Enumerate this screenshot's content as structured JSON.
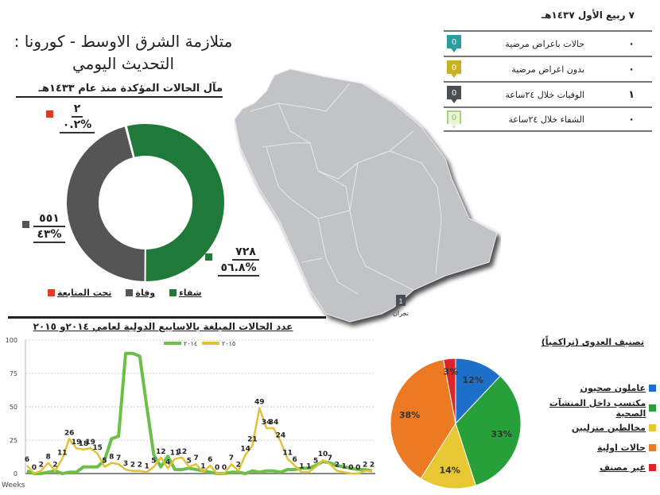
{
  "header": {
    "title_line1": "متلازمة الشرق الاوسط - كورونا :",
    "title_line2": "التحديث اليومي"
  },
  "donut": {
    "heading": "مآل الحالات المؤكدة منذ عام ١٤٣٣هـ",
    "labels": {
      "followup": {
        "num": "٢",
        "pct": "%٠.٢"
      },
      "death": {
        "num": "٥٥١",
        "pct": "%٤٣"
      },
      "recovery": {
        "num": "٧٢٨",
        "pct": "%٥٦.٨"
      }
    },
    "legend": {
      "recovery": "شفاء",
      "death": "وفاة",
      "followup": "تحت المتابعة"
    }
  },
  "daily": {
    "date": "٧ ربيع الأول ١٤٣٧هـ",
    "rows": [
      {
        "icon": "0",
        "label": "حالات باعراض مرضية",
        "value": "٠"
      },
      {
        "icon": "0",
        "label": "بدون اعراض مرضية",
        "value": "٠"
      },
      {
        "icon": "0",
        "label": "الوفيات خلال ٢٤ساعة",
        "value": "١"
      },
      {
        "icon": "0",
        "label": "الشفاء خلال ٢٤ساعة",
        "value": "٠"
      }
    ]
  },
  "map": {
    "marker_count": "1",
    "marker_city": "نجران"
  },
  "line": {
    "title": "عدد الحالات المبلغة بالاسابيع الدولية لعامي ٢٠١٤و ٢٠١٥",
    "legend_2014": "٢٠١٤",
    "legend_2015": "٢٠١٥",
    "xlabel": "Weeks",
    "yticks": [
      "100",
      "75",
      "50",
      "25",
      "0"
    ]
  },
  "pie": {
    "title": "تصنيف العدوى (تراكمياً)",
    "legend": [
      "عاملون صحيون",
      "مكتسب داخل المنشآت الصحية",
      "مخالطين منزليين",
      "حالات اولية",
      "غير مصنف"
    ],
    "labels": [
      "12%",
      "33%",
      "14%",
      "38%",
      "3%"
    ]
  },
  "colors": {
    "recovery_green": "#1f7a3a",
    "death_gray": "#555555",
    "followup_red": "#e03a2a",
    "teal": "#2a9da0",
    "mustard": "#c9b123",
    "dark": "#4a4d52",
    "light_green": "#a9d47c",
    "line2014": "#6cc04a",
    "line2015": "#e2c13a",
    "pie_blue": "#1d6fc9",
    "pie_green": "#27a03a",
    "pie_yellow": "#e8c832",
    "pie_orange": "#ec7a22",
    "pie_red": "#d8262a",
    "map_gray": "#c1c3c6"
  },
  "chart_data": [
    {
      "type": "pie",
      "title": "مآل الحالات المؤكدة منذ عام ١٤٣٣هـ",
      "categories": [
        "شفاء",
        "وفاة",
        "تحت المتابعة"
      ],
      "values": [
        728,
        551,
        2
      ],
      "percent": [
        56.8,
        43,
        0.2
      ],
      "donut": true,
      "legend_position": "bottom"
    },
    {
      "type": "line",
      "title": "عدد الحالات المبلغة بالاسابيع الدولية لعامي ٢٠١٤و ٢٠١٥",
      "xlabel": "Weeks",
      "ylabel": "",
      "ylim": [
        0,
        100
      ],
      "yticks": [
        0,
        25,
        50,
        75,
        100
      ],
      "grid": true,
      "legend_position": "top",
      "series": [
        {
          "name": "٢٠١٥",
          "values": [
            6,
            0,
            2,
            8,
            2,
            11,
            26,
            19,
            18,
            19,
            15,
            5,
            8,
            7,
            3,
            2,
            2,
            1,
            5,
            12,
            4,
            11,
            12,
            5,
            7,
            1,
            6,
            0,
            0,
            7,
            2,
            14,
            21,
            49,
            34,
            34,
            24,
            11,
            6,
            1,
            1,
            5,
            10,
            7,
            2,
            1,
            0,
            0,
            2,
            2
          ]
        },
        {
          "name": "٢٠١٤",
          "values": [
            2,
            0,
            0,
            1,
            2,
            0,
            1,
            1,
            5,
            5,
            5,
            10,
            26,
            28,
            90,
            90,
            88,
            50,
            14,
            5,
            13,
            3,
            3,
            4,
            3,
            2,
            1,
            0,
            0,
            1,
            1,
            0,
            2,
            1,
            2,
            2,
            1,
            3,
            3,
            4,
            4,
            6,
            9,
            8,
            6,
            5,
            4,
            3,
            3,
            2
          ]
        }
      ]
    },
    {
      "type": "pie",
      "title": "تصنيف العدوى (تراكمياً)",
      "categories": [
        "عاملون صحيون",
        "مكتسب داخل المنشآت الصحية",
        "مخالطين منزليين",
        "حالات اولية",
        "غير مصنف"
      ],
      "values": [
        12,
        33,
        14,
        38,
        3
      ],
      "legend_position": "right"
    }
  ]
}
